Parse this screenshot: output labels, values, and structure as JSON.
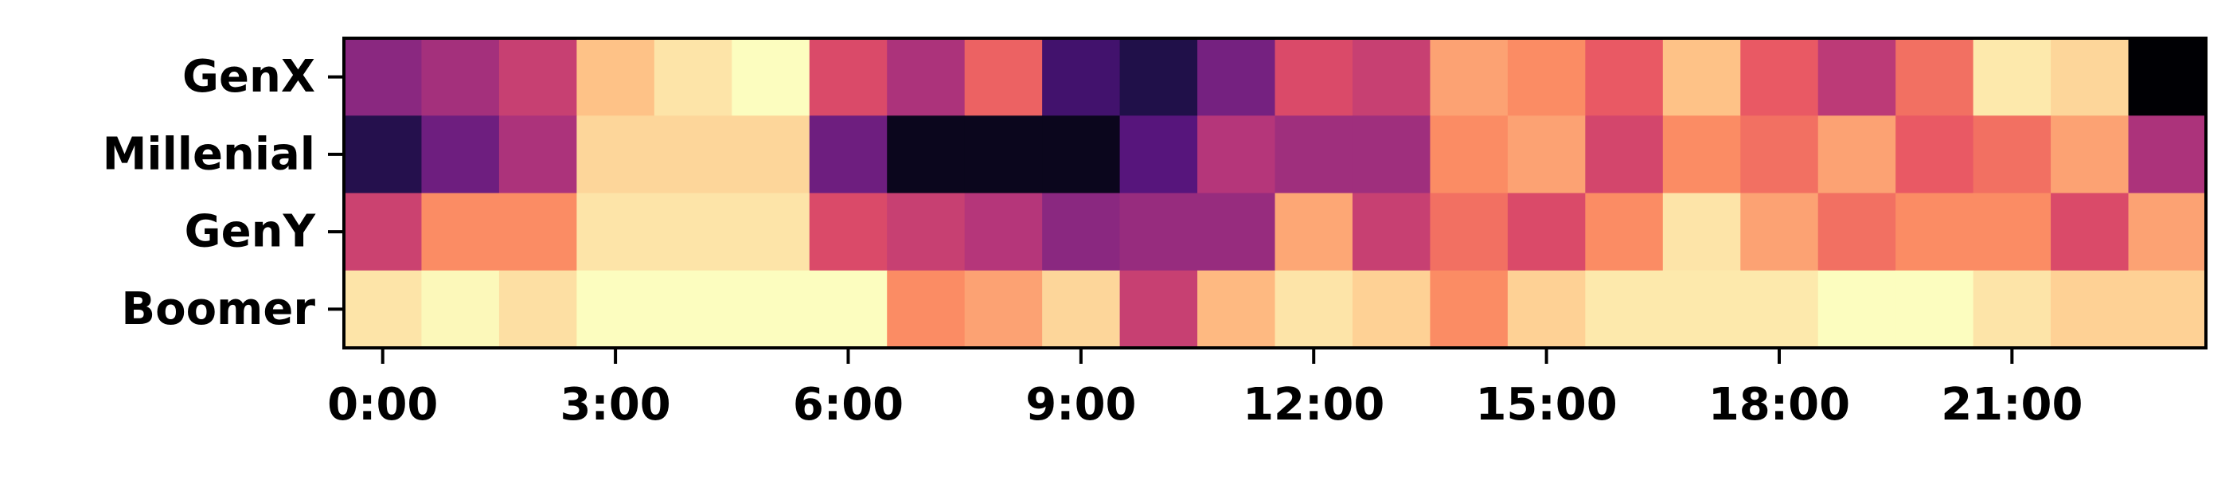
{
  "chart_data": {
    "type": "heatmap",
    "title": "",
    "xlabel": "",
    "ylabel": "",
    "colormap": "magma",
    "value_range": [
      0,
      1
    ],
    "rows": [
      "GenX",
      "Millenial",
      "GenY",
      "Boomer"
    ],
    "columns": [
      "0:00",
      "1:00",
      "2:00",
      "3:00",
      "4:00",
      "5:00",
      "6:00",
      "7:00",
      "8:00",
      "9:00",
      "10:00",
      "11:00",
      "12:00",
      "13:00",
      "14:00",
      "15:00",
      "16:00",
      "17:00",
      "18:00",
      "19:00",
      "20:00",
      "21:00",
      "22:00",
      "23:00"
    ],
    "x_tick_labels": [
      "0:00",
      "3:00",
      "6:00",
      "9:00",
      "12:00",
      "15:00",
      "18:00",
      "21:00"
    ],
    "values": [
      [
        0.4,
        0.46,
        0.55,
        0.88,
        0.95,
        1.0,
        0.6,
        0.48,
        0.67,
        0.22,
        0.14,
        0.35,
        0.6,
        0.55,
        0.81,
        0.76,
        0.65,
        0.88,
        0.65,
        0.52,
        0.7,
        0.96,
        0.92,
        0.0
      ],
      [
        0.15,
        0.33,
        0.48,
        0.92,
        0.92,
        0.92,
        0.33,
        0.05,
        0.05,
        0.05,
        0.27,
        0.5,
        0.45,
        0.45,
        0.76,
        0.81,
        0.58,
        0.76,
        0.7,
        0.81,
        0.65,
        0.7,
        0.81,
        0.48
      ],
      [
        0.56,
        0.76,
        0.76,
        0.95,
        0.95,
        0.95,
        0.6,
        0.55,
        0.5,
        0.4,
        0.43,
        0.43,
        0.82,
        0.55,
        0.7,
        0.6,
        0.76,
        0.95,
        0.81,
        0.7,
        0.76,
        0.76,
        0.6,
        0.81
      ],
      [
        0.95,
        0.99,
        0.94,
        1.0,
        1.0,
        1.0,
        1.0,
        0.76,
        0.81,
        0.92,
        0.55,
        0.86,
        0.95,
        0.91,
        0.76,
        0.91,
        0.96,
        0.96,
        0.96,
        1.0,
        1.0,
        0.95,
        0.91,
        0.91
      ]
    ],
    "grid": false,
    "legend": "none"
  }
}
